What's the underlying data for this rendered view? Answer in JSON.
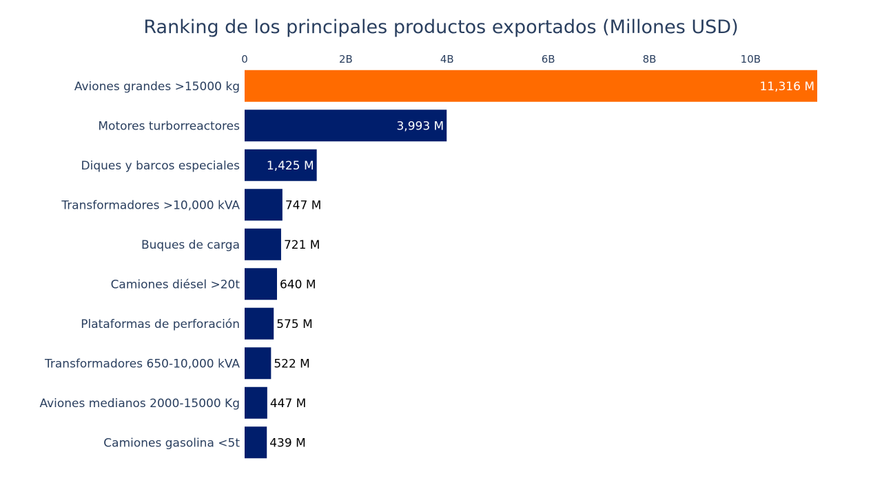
{
  "chart_data": {
    "type": "bar",
    "orientation": "horizontal",
    "title": "Ranking de los principales productos exportados (Millones USD)",
    "xlabel": "",
    "ylabel": "",
    "xlim": [
      0,
      11316
    ],
    "x_ticks": [
      {
        "value": 0,
        "label": "0"
      },
      {
        "value": 2000,
        "label": "2B"
      },
      {
        "value": 4000,
        "label": "4B"
      },
      {
        "value": 6000,
        "label": "6B"
      },
      {
        "value": 8000,
        "label": "8B"
      },
      {
        "value": 10000,
        "label": "10B"
      }
    ],
    "x_axis_position": "top",
    "grid": false,
    "categories": [
      "Aviones grandes >15000 kg",
      "Motores turborreactores",
      "Diques y barcos especiales",
      "Transformadores >10,000 kVA",
      "Buques de carga",
      "Camiones diésel >20t",
      "Plataformas de perforación",
      "Transformadores 650-10,000 kVA",
      "Aviones medianos 2000-15000 Kg",
      "Camiones gasolina <5t"
    ],
    "values": [
      11316,
      3993,
      1425,
      747,
      721,
      640,
      575,
      522,
      447,
      439
    ],
    "value_labels": [
      "11,316 M",
      "3,993 M",
      "1,425 M",
      "747 M",
      "721 M",
      "640 M",
      "575 M",
      "522 M",
      "447 M",
      "439 M"
    ],
    "colors": [
      "#ff6b00",
      "#001e6c",
      "#001e6c",
      "#001e6c",
      "#001e6c",
      "#001e6c",
      "#001e6c",
      "#001e6c",
      "#001e6c",
      "#001e6c"
    ],
    "highlight_color": "#ff6b00",
    "bar_color": "#001e6c",
    "text_color": "#2a3f5f"
  }
}
